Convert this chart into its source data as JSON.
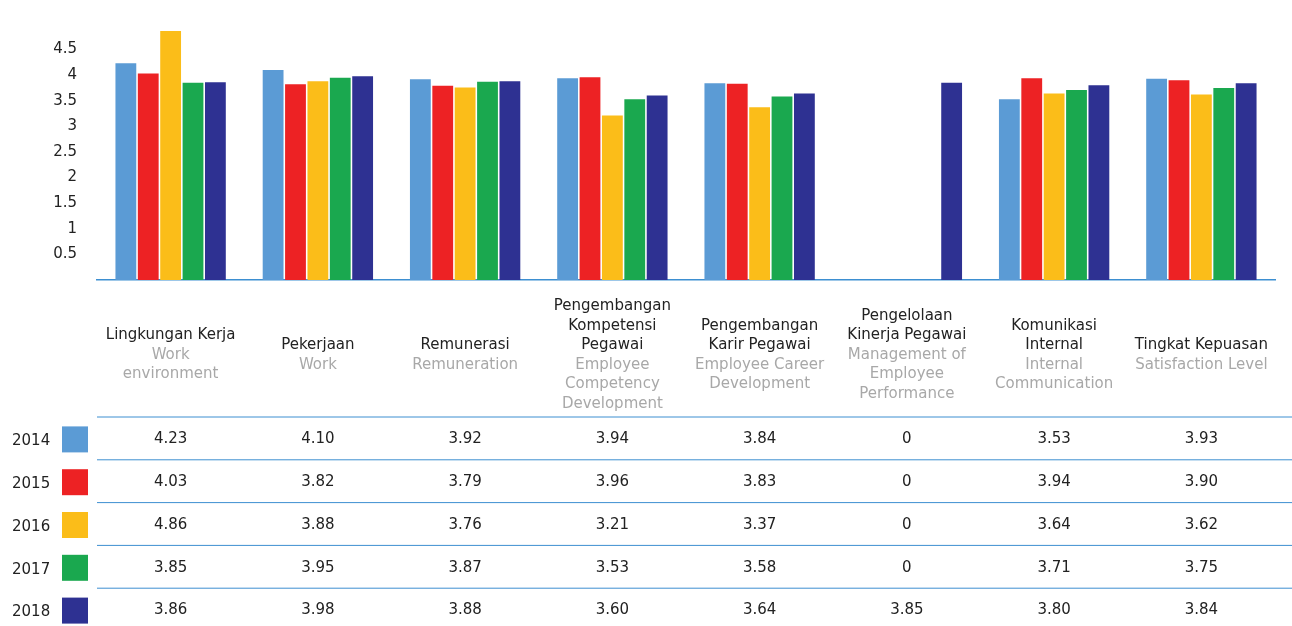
{
  "chart_data": {
    "type": "bar",
    "categories": [
      "Lingkungan Kerja\nWork environment",
      "Pekerjaan\nWork",
      "Remunerasi\nRemuneration",
      "Pengembangan Kompetensi Pegawai\nEmployee Competency Development",
      "Pengembangan Karir Pegawai\nEmployee Career Development",
      "Pengelolaan Kinerja Pegawai\nManagement of Employee Performance",
      "Komunikasi Internal\nInternal Communication",
      "Tingkat Kepuasan\nSatisfaction Level"
    ],
    "series": [
      {
        "name": "2014",
        "color": "#5b9bd5",
        "values": [
          4.23,
          4.1,
          3.92,
          3.94,
          3.84,
          0,
          3.53,
          3.93
        ],
        "value_labels": [
          "4.23",
          "4.10",
          "3.92",
          "3.94",
          "3.84",
          "0",
          "3.53",
          "3.93"
        ]
      },
      {
        "name": "2015",
        "color": "#ed2224",
        "values": [
          4.03,
          3.82,
          3.79,
          3.96,
          3.83,
          0,
          3.94,
          3.9
        ],
        "value_labels": [
          "4.03",
          "3.82",
          "3.79",
          "3.96",
          "3.83",
          "0",
          "3.94",
          "3.90"
        ]
      },
      {
        "name": "2016",
        "color": "#fbbd19",
        "values": [
          4.86,
          3.88,
          3.76,
          3.21,
          3.37,
          0,
          3.64,
          3.62
        ],
        "value_labels": [
          "4.86",
          "3.88",
          "3.76",
          "3.21",
          "3.37",
          "0",
          "3.64",
          "3.62"
        ]
      },
      {
        "name": "2017",
        "color": "#1aa84f",
        "values": [
          3.85,
          3.95,
          3.87,
          3.53,
          3.58,
          0,
          3.71,
          3.75
        ],
        "value_labels": [
          "3.85",
          "3.95",
          "3.87",
          "3.53",
          "3.58",
          "0",
          "3.71",
          "3.75"
        ]
      },
      {
        "name": "2018",
        "color": "#2e3192",
        "values": [
          3.86,
          3.98,
          3.88,
          3.6,
          3.64,
          3.85,
          3.8,
          3.84
        ],
        "value_labels": [
          "3.86",
          "3.98",
          "3.88",
          "3.60",
          "3.64",
          "3.85",
          "3.80",
          "3.84"
        ]
      }
    ],
    "ylim": [
      0,
      4.9
    ],
    "yticks": [
      0.5,
      1,
      1.5,
      2,
      2.5,
      3,
      3.5,
      4,
      4.5
    ],
    "grid": false,
    "legend": "bottom left"
  }
}
